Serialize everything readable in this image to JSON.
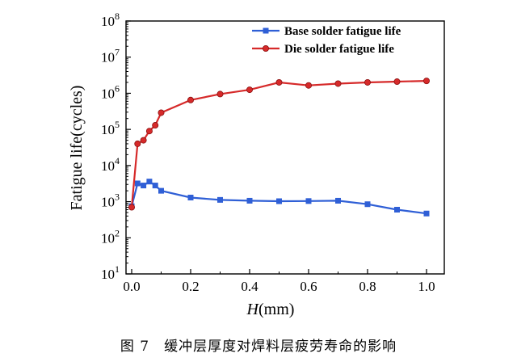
{
  "chart_data": {
    "type": "line",
    "x_label_italic": "H",
    "x_label_rest": "(mm)",
    "ylabel": "Fatigue life(cycles)",
    "xlim": [
      0.0,
      1.0
    ],
    "ylim_log10": [
      1,
      8
    ],
    "x_ticks": [
      "0.0",
      "0.2",
      "0.4",
      "0.6",
      "0.8",
      "1.0"
    ],
    "y_tick_exponents": [
      "1",
      "2",
      "3",
      "4",
      "5",
      "6",
      "7",
      "8"
    ],
    "y_tick_base": "10",
    "y_scale": "log",
    "grid": false,
    "legend_position": "top-right",
    "series": [
      {
        "name": "Base solder fatigue life",
        "color": "#2f5fd6",
        "marker": "square",
        "x": [
          0.0,
          0.02,
          0.04,
          0.06,
          0.08,
          0.1,
          0.2,
          0.3,
          0.4,
          0.5,
          0.6,
          0.7,
          0.8,
          0.9,
          1.0
        ],
        "y": [
          750,
          3200,
          2800,
          3600,
          2800,
          2000,
          1300,
          1120,
          1060,
          1030,
          1040,
          1060,
          850,
          600,
          470
        ]
      },
      {
        "name": "Die solder fatigue life",
        "color": "#d62a2a",
        "marker": "circle",
        "x": [
          0.0,
          0.02,
          0.04,
          0.06,
          0.08,
          0.1,
          0.2,
          0.3,
          0.4,
          0.5,
          0.6,
          0.7,
          0.8,
          0.9,
          1.0
        ],
        "y": [
          700,
          40000,
          50000,
          90000,
          130000,
          290000,
          650000,
          950000,
          1250000,
          2000000,
          1650000,
          1850000,
          2000000,
          2100000,
          2200000
        ]
      }
    ]
  },
  "caption": "图 7　缓冲层厚度对焊料层疲劳寿命的影响"
}
